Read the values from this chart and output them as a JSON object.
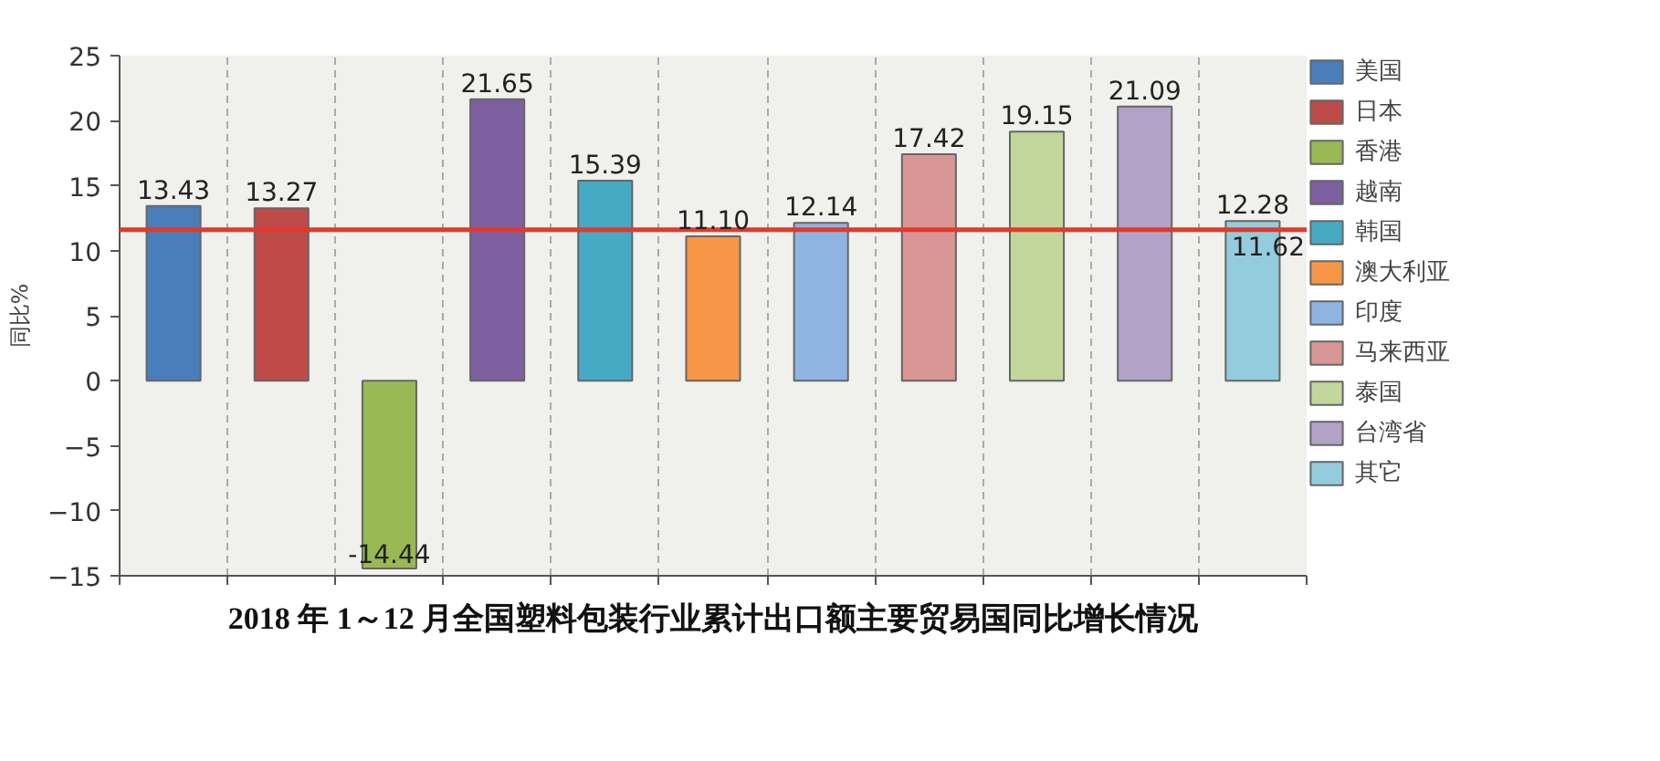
{
  "chart_data": {
    "type": "bar",
    "title": "2018 年 1～12 月全国塑料包装行业累计出口额主要贸易国同比增长情况",
    "ylabel": "同比%",
    "categories": [
      null,
      null,
      null,
      null,
      null,
      null,
      null,
      null,
      null,
      null,
      null
    ],
    "series": [
      {
        "name": "美国",
        "color": "#4a7ebb",
        "values": [
          13.43,
          null,
          null,
          null,
          null,
          null,
          null,
          null,
          null,
          null,
          null
        ],
        "value_labels": [
          "13.43",
          null,
          null,
          null,
          null,
          null,
          null,
          null,
          null,
          null,
          null
        ]
      },
      {
        "name": "日本",
        "color": "#be4b48",
        "values": [
          null,
          13.27,
          null,
          null,
          null,
          null,
          null,
          null,
          null,
          null,
          null
        ],
        "value_labels": [
          null,
          "13.27",
          null,
          null,
          null,
          null,
          null,
          null,
          null,
          null,
          null
        ]
      },
      {
        "name": "香港",
        "color": "#98b954",
        "values": [
          null,
          null,
          -14.44,
          null,
          null,
          null,
          null,
          null,
          null,
          null,
          null
        ],
        "value_labels": [
          null,
          null,
          "-14.44",
          null,
          null,
          null,
          null,
          null,
          null,
          null,
          null
        ]
      },
      {
        "name": "越南",
        "color": "#7d60a0",
        "values": [
          null,
          null,
          null,
          21.65,
          null,
          null,
          null,
          null,
          null,
          null,
          null
        ],
        "value_labels": [
          null,
          null,
          null,
          "21.65",
          null,
          null,
          null,
          null,
          null,
          null,
          null
        ]
      },
      {
        "name": "韩国",
        "color": "#46aac5",
        "values": [
          null,
          null,
          null,
          null,
          15.39,
          null,
          null,
          null,
          null,
          null,
          null
        ],
        "value_labels": [
          null,
          null,
          null,
          null,
          "15.39",
          null,
          null,
          null,
          null,
          null,
          null
        ]
      },
      {
        "name": "澳大利亚",
        "color": "#f79646",
        "values": [
          null,
          null,
          null,
          null,
          null,
          11.1,
          null,
          null,
          null,
          null,
          null
        ],
        "value_labels": [
          null,
          null,
          null,
          null,
          null,
          "11.10",
          null,
          null,
          null,
          null,
          null
        ]
      },
      {
        "name": "印度",
        "color": "#8eb4e3",
        "values": [
          null,
          null,
          null,
          null,
          null,
          null,
          12.14,
          null,
          null,
          null,
          null
        ],
        "value_labels": [
          null,
          null,
          null,
          null,
          null,
          null,
          "12.14",
          null,
          null,
          null,
          null
        ]
      },
      {
        "name": "马来西亚",
        "color": "#d99694",
        "values": [
          null,
          null,
          null,
          null,
          null,
          null,
          null,
          17.42,
          null,
          null,
          null
        ],
        "value_labels": [
          null,
          null,
          null,
          null,
          null,
          null,
          null,
          "17.42",
          null,
          null,
          null
        ]
      },
      {
        "name": "泰国",
        "color": "#c3d69b",
        "values": [
          null,
          null,
          null,
          null,
          null,
          null,
          null,
          null,
          19.15,
          null,
          null
        ],
        "value_labels": [
          null,
          null,
          null,
          null,
          null,
          null,
          null,
          null,
          "19.15",
          null,
          null
        ]
      },
      {
        "name": "台湾省",
        "color": "#b3a2c7",
        "values": [
          null,
          null,
          null,
          null,
          null,
          null,
          null,
          null,
          null,
          21.09,
          null
        ],
        "value_labels": [
          null,
          null,
          null,
          null,
          null,
          null,
          null,
          null,
          null,
          "21.09",
          null
        ]
      },
      {
        "name": "其它",
        "color": "#93cddd",
        "values": [
          null,
          null,
          null,
          null,
          null,
          null,
          null,
          null,
          null,
          null,
          12.28
        ],
        "value_labels": [
          null,
          null,
          null,
          null,
          null,
          null,
          null,
          null,
          null,
          null,
          "12.28"
        ]
      }
    ],
    "ylim": [
      -15,
      25
    ],
    "yticks": [
      -15,
      -10,
      -5,
      0,
      5,
      10,
      15,
      20,
      25
    ],
    "ref_lines": [
      {
        "axis": "y",
        "value": 11.62,
        "label": "11.62",
        "color": "#e03a2c"
      }
    ],
    "grid": "x",
    "legend": "right",
    "tick_labels": "y"
  }
}
